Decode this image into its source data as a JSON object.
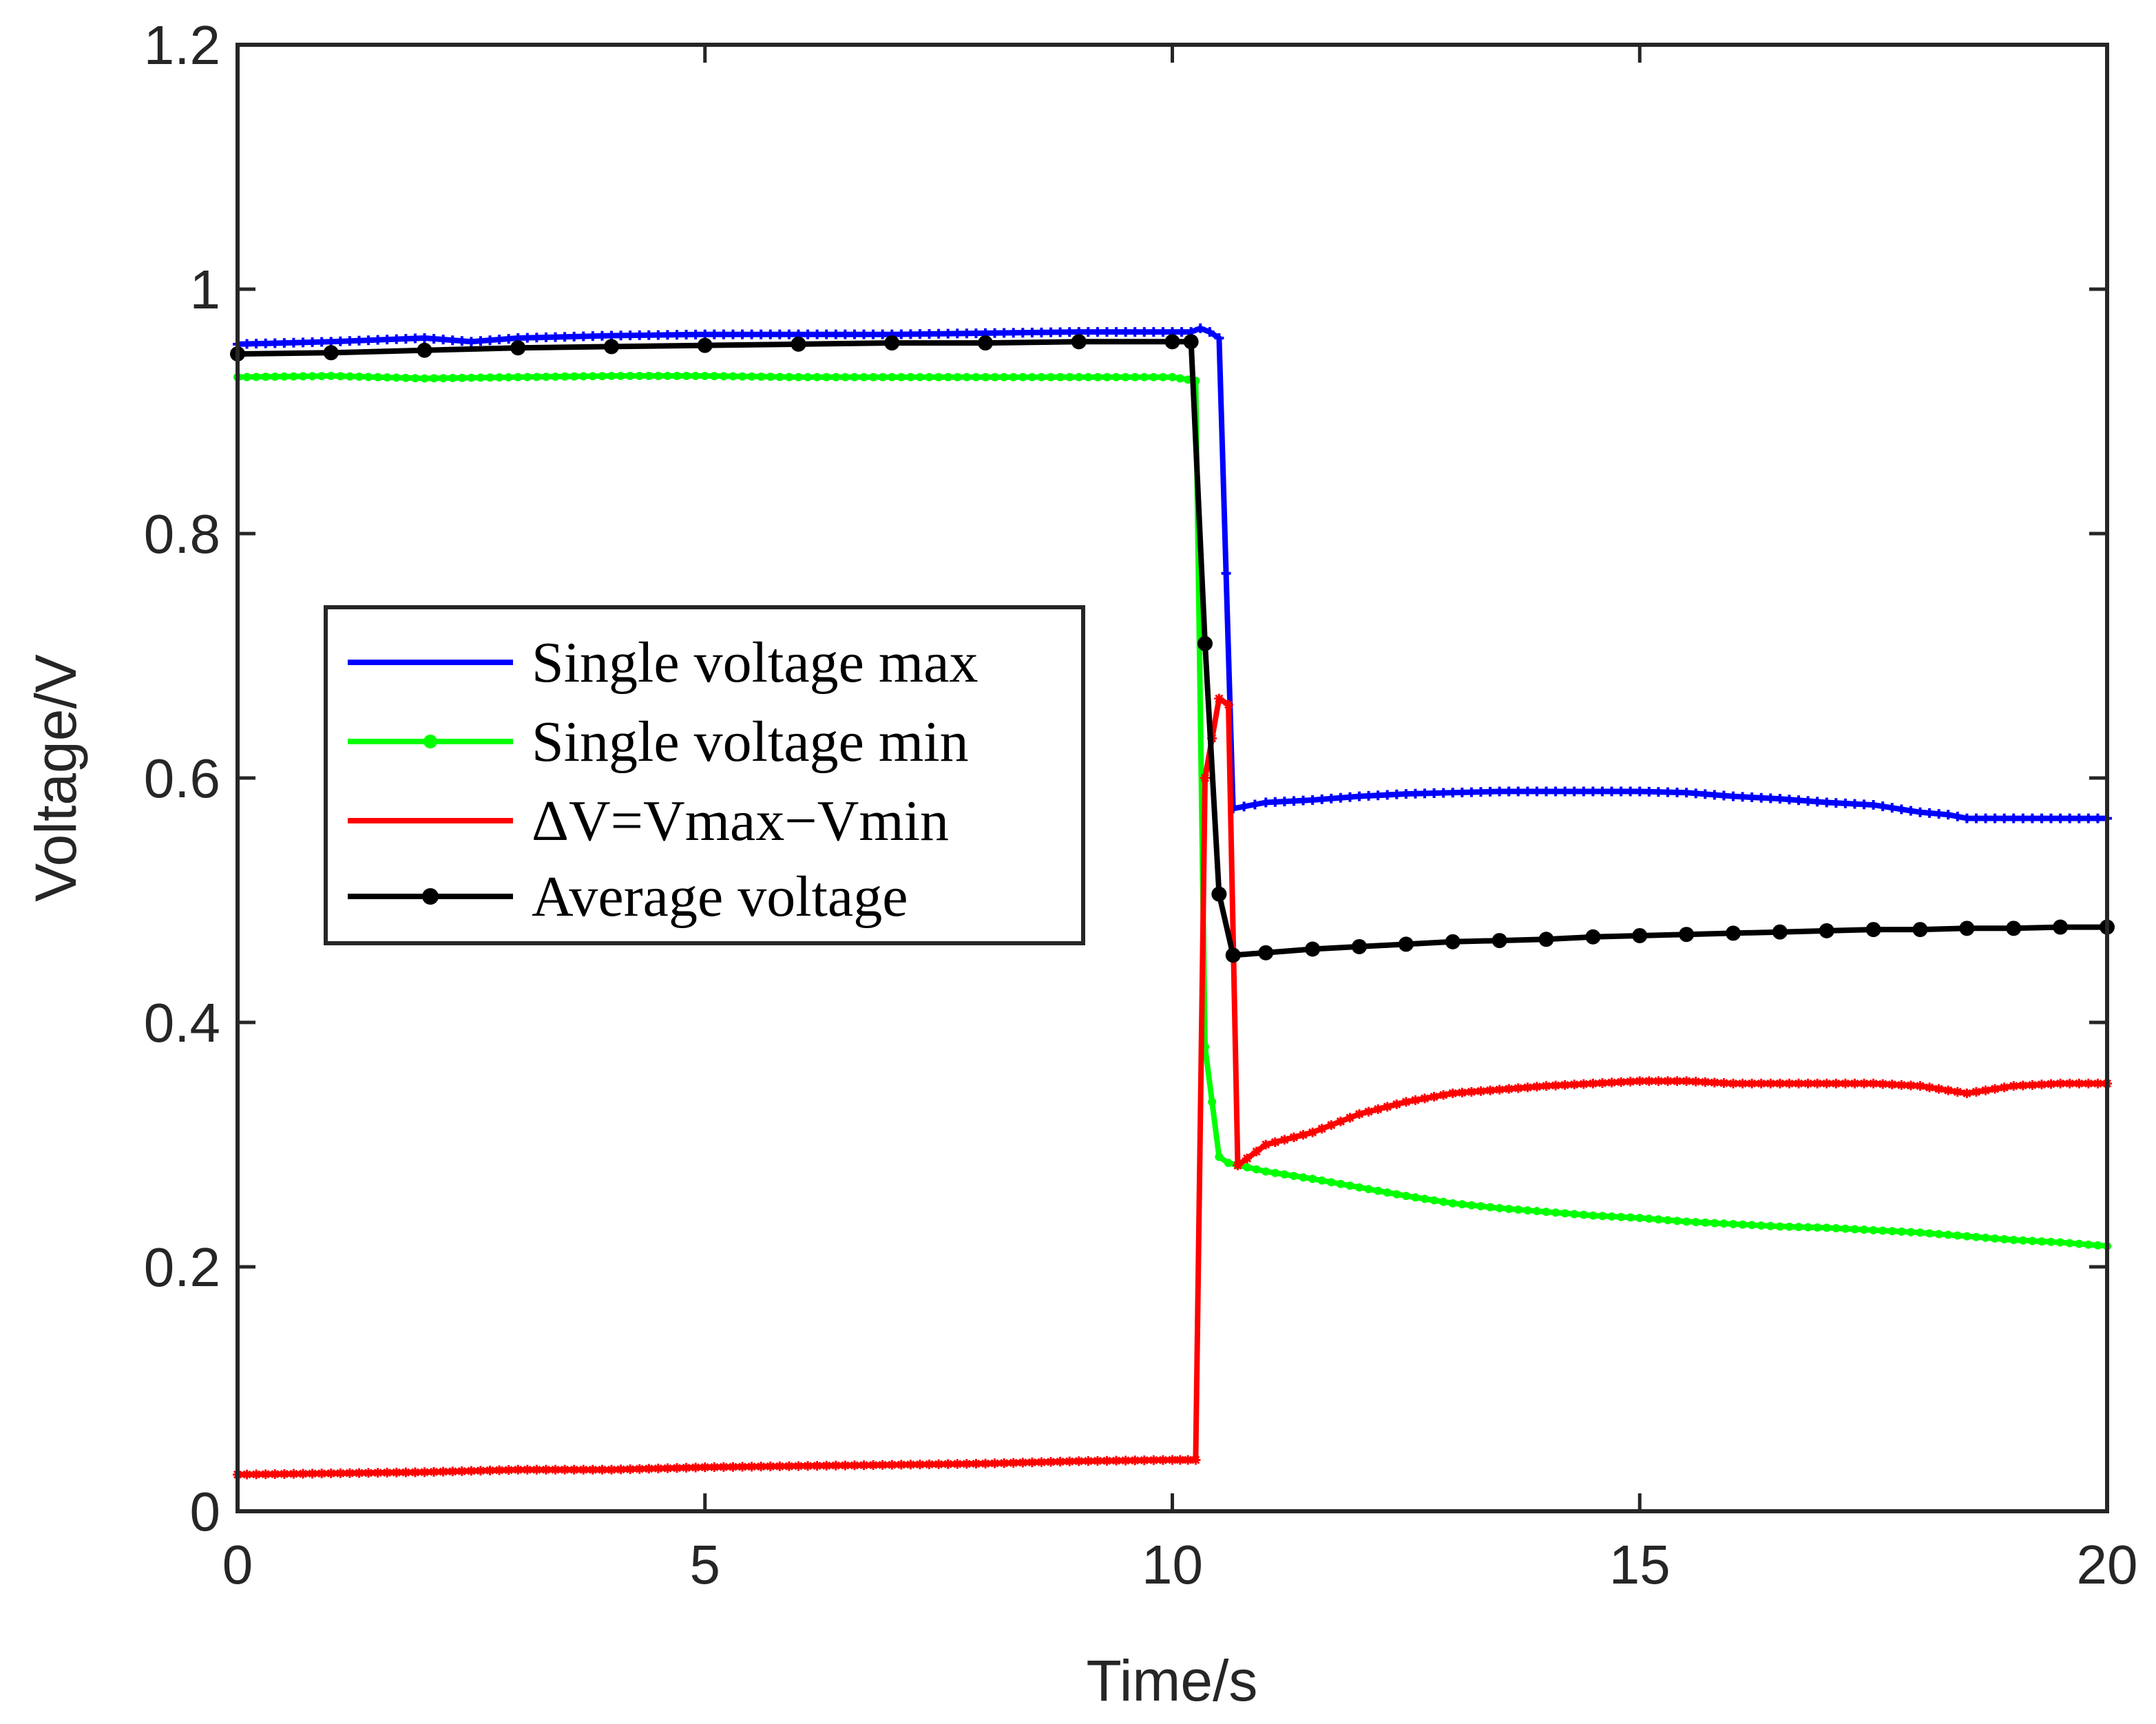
{
  "chart_data": {
    "type": "line",
    "title": "",
    "xlabel": "Time/s",
    "ylabel": "Voltage/V",
    "xlim": [
      0,
      20
    ],
    "ylim": [
      0,
      1.2
    ],
    "xticks": [
      0,
      5,
      10,
      15,
      20
    ],
    "xtick_labels": [
      "0",
      "5",
      "10",
      "15",
      "20"
    ],
    "yticks": [
      0,
      0.2,
      0.4,
      0.6,
      0.8,
      1.0,
      1.2
    ],
    "ytick_labels": [
      "0",
      "0.2",
      "0.4",
      "0.6",
      "0.8",
      "1",
      "1.2"
    ],
    "grid": false,
    "legend_position": "center-left",
    "series": [
      {
        "name": "Single voltage max",
        "color": "#0000ff",
        "marker": "plus",
        "x": [
          0,
          1,
          2,
          2.5,
          3,
          4,
          5,
          6,
          7,
          8,
          9,
          9.5,
          10,
          10.2,
          10.3,
          10.4,
          10.5,
          10.65,
          11,
          11.5,
          12,
          12.5,
          13,
          13.5,
          14,
          14.5,
          15,
          15.5,
          16,
          16.5,
          17,
          17.5,
          18,
          18.3,
          18.5,
          19,
          19.5,
          20
        ],
        "values": [
          0.955,
          0.957,
          0.96,
          0.957,
          0.96,
          0.962,
          0.963,
          0.963,
          0.963,
          0.964,
          0.965,
          0.965,
          0.965,
          0.965,
          0.968,
          0.965,
          0.96,
          0.575,
          0.58,
          0.582,
          0.585,
          0.587,
          0.588,
          0.589,
          0.589,
          0.589,
          0.589,
          0.588,
          0.585,
          0.583,
          0.58,
          0.578,
          0.572,
          0.57,
          0.567,
          0.567,
          0.567,
          0.567
        ]
      },
      {
        "name": "Single voltage min",
        "color": "#00ff00",
        "marker": "dot",
        "x": [
          0,
          1,
          2,
          3,
          4,
          5,
          6,
          7,
          8,
          9,
          10,
          10.25,
          10.35,
          10.5,
          10.6,
          11,
          11.5,
          12,
          12.5,
          13,
          13.5,
          14,
          14.5,
          15,
          15.5,
          16,
          16.5,
          17,
          17.5,
          18,
          18.5,
          19,
          19.5,
          20
        ],
        "values": [
          0.928,
          0.929,
          0.927,
          0.928,
          0.929,
          0.929,
          0.928,
          0.928,
          0.928,
          0.928,
          0.928,
          0.925,
          0.38,
          0.29,
          0.285,
          0.278,
          0.272,
          0.265,
          0.258,
          0.252,
          0.248,
          0.245,
          0.242,
          0.24,
          0.237,
          0.235,
          0.233,
          0.232,
          0.23,
          0.228,
          0.225,
          0.222,
          0.22,
          0.217
        ]
      },
      {
        "name": "ΔV=Vmax−Vmin",
        "color": "#ff0000",
        "marker": "star",
        "x": [
          0,
          1,
          2,
          3,
          4,
          5,
          6,
          7,
          8,
          9,
          10,
          10.25,
          10.35,
          10.5,
          10.6,
          10.7,
          11,
          11.5,
          12,
          12.5,
          13,
          13.5,
          14,
          14.5,
          15,
          15.5,
          16,
          16.5,
          17,
          17.5,
          18,
          18.5,
          19,
          19.5,
          20
        ],
        "values": [
          0.03,
          0.031,
          0.032,
          0.034,
          0.034,
          0.036,
          0.037,
          0.038,
          0.039,
          0.041,
          0.042,
          0.042,
          0.6,
          0.665,
          0.66,
          0.283,
          0.3,
          0.31,
          0.325,
          0.335,
          0.342,
          0.345,
          0.348,
          0.35,
          0.352,
          0.352,
          0.35,
          0.35,
          0.35,
          0.35,
          0.348,
          0.342,
          0.348,
          0.35,
          0.35
        ]
      },
      {
        "name": "Average voltage",
        "color": "#000000",
        "marker": "circle",
        "x": [
          0,
          1,
          2,
          3,
          4,
          5,
          6,
          7,
          8,
          9,
          10,
          10.2,
          10.35,
          10.5,
          10.65,
          11,
          11.5,
          12,
          12.5,
          13,
          13.5,
          14,
          14.5,
          15,
          15.5,
          16,
          16.5,
          17,
          17.5,
          18,
          18.5,
          19,
          19.5,
          20
        ],
        "values": [
          0.947,
          0.948,
          0.95,
          0.952,
          0.953,
          0.954,
          0.955,
          0.956,
          0.956,
          0.957,
          0.957,
          0.957,
          0.71,
          0.505,
          0.455,
          0.457,
          0.46,
          0.462,
          0.464,
          0.466,
          0.467,
          0.468,
          0.47,
          0.471,
          0.472,
          0.473,
          0.474,
          0.475,
          0.476,
          0.476,
          0.477,
          0.477,
          0.478,
          0.478
        ]
      }
    ]
  }
}
